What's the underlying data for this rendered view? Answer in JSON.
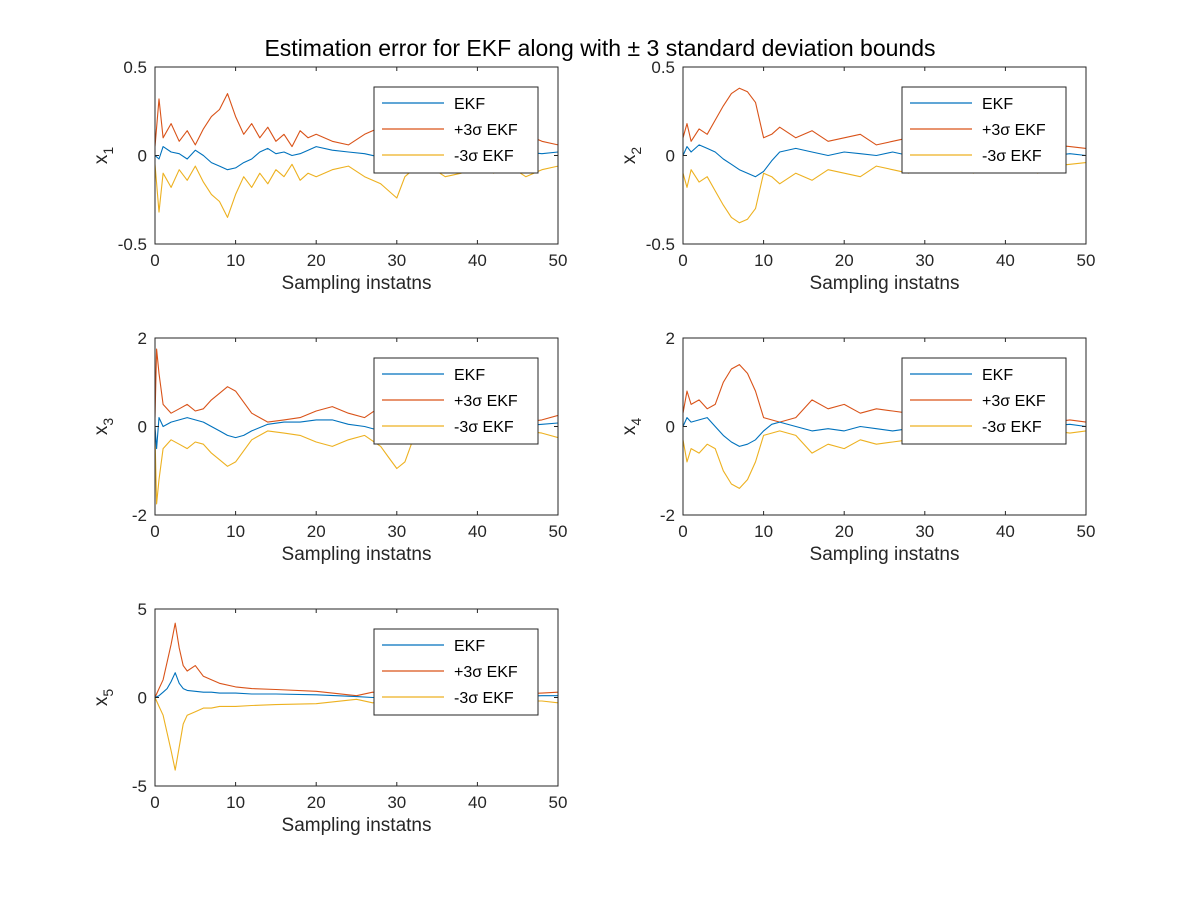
{
  "figure": {
    "title_prefix": "Estimation error for EKF along with ",
    "title_pm": "±",
    "title_suffix": " 3 standard deviation bounds"
  },
  "colors": {
    "EKF": "#0072BD",
    "plus": "#D95319",
    "minus": "#EDB120",
    "axis": "#262626"
  },
  "chart_data": [
    {
      "type": "line",
      "panel": "x1",
      "ylabel_base": "x",
      "ylabel_sub": "1",
      "xlabel": "Sampling instatns",
      "xlim": [
        0,
        50
      ],
      "ylim": [
        -0.5,
        0.5
      ],
      "xticks": [
        "0",
        "10",
        "20",
        "30",
        "40",
        "50"
      ],
      "yticks": [
        "-0.5",
        "0",
        "0.5"
      ],
      "legend": {
        "placement": "top-right",
        "entries": [
          "EKF",
          "+3σ EKF",
          "-3σ EKF"
        ]
      },
      "x": [
        0,
        0.5,
        1,
        2,
        3,
        4,
        5,
        6,
        7,
        8,
        9,
        10,
        11,
        12,
        13,
        14,
        15,
        16,
        17,
        18,
        19,
        20,
        22,
        24,
        26,
        28,
        29,
        30,
        31,
        32,
        34,
        36,
        38,
        40,
        42,
        44,
        46,
        48,
        50
      ],
      "series": [
        {
          "name": "EKF",
          "values": [
            0,
            -0.02,
            0.05,
            0.02,
            0.01,
            -0.02,
            0.03,
            0.0,
            -0.04,
            -0.06,
            -0.08,
            -0.07,
            -0.04,
            -0.02,
            0.02,
            0.04,
            0.01,
            0.02,
            0.0,
            0.01,
            0.03,
            0.05,
            0.03,
            0.02,
            0.01,
            -0.01,
            0.0,
            0.02,
            0.01,
            0.0,
            0.02,
            0.01,
            0.0,
            0.02,
            0.01,
            0.0,
            0.02,
            0.01,
            0.02
          ]
        },
        {
          "name": "+3σ EKF",
          "values": [
            0.05,
            0.32,
            0.1,
            0.18,
            0.08,
            0.14,
            0.06,
            0.15,
            0.22,
            0.26,
            0.35,
            0.22,
            0.12,
            0.18,
            0.1,
            0.16,
            0.08,
            0.12,
            0.05,
            0.14,
            0.1,
            0.12,
            0.08,
            0.06,
            0.12,
            0.16,
            0.2,
            0.22,
            0.12,
            0.08,
            0.06,
            0.12,
            0.1,
            0.05,
            0.1,
            0.06,
            0.12,
            0.08,
            0.06
          ]
        },
        {
          "name": "-3σ EKF",
          "values": [
            -0.05,
            -0.32,
            -0.1,
            -0.18,
            -0.08,
            -0.14,
            -0.06,
            -0.15,
            -0.22,
            -0.26,
            -0.35,
            -0.22,
            -0.12,
            -0.18,
            -0.1,
            -0.16,
            -0.08,
            -0.12,
            -0.05,
            -0.14,
            -0.1,
            -0.12,
            -0.08,
            -0.06,
            -0.12,
            -0.16,
            -0.2,
            -0.24,
            -0.12,
            -0.08,
            -0.06,
            -0.12,
            -0.1,
            -0.05,
            -0.1,
            -0.06,
            -0.12,
            -0.08,
            -0.06
          ]
        }
      ]
    },
    {
      "type": "line",
      "panel": "x2",
      "ylabel_base": "x",
      "ylabel_sub": "2",
      "xlabel": "Sampling instatns",
      "xlim": [
        0,
        50
      ],
      "ylim": [
        -0.5,
        0.5
      ],
      "xticks": [
        "0",
        "10",
        "20",
        "30",
        "40",
        "50"
      ],
      "yticks": [
        "-0.5",
        "0",
        "0.5"
      ],
      "legend": {
        "placement": "top-right",
        "entries": [
          "EKF",
          "+3σ EKF",
          "-3σ EKF"
        ]
      },
      "x": [
        0,
        0.5,
        1,
        2,
        3,
        4,
        5,
        6,
        7,
        8,
        9,
        10,
        11,
        12,
        14,
        16,
        18,
        20,
        22,
        24,
        26,
        28,
        30,
        32,
        34,
        36,
        38,
        40,
        42,
        44,
        46,
        48,
        50
      ],
      "series": [
        {
          "name": "EKF",
          "values": [
            0,
            0.05,
            0.02,
            0.06,
            0.04,
            0.02,
            -0.02,
            -0.05,
            -0.08,
            -0.1,
            -0.12,
            -0.09,
            -0.03,
            0.02,
            0.04,
            0.02,
            0.0,
            0.02,
            0.01,
            0.0,
            0.02,
            0.0,
            0.01,
            0.02,
            0.0,
            0.01,
            0.0,
            0.02,
            0.0,
            0.01,
            0.0,
            0.01,
            0.0
          ]
        },
        {
          "name": "+3σ EKF",
          "values": [
            0.1,
            0.18,
            0.08,
            0.15,
            0.12,
            0.2,
            0.28,
            0.35,
            0.38,
            0.36,
            0.3,
            0.1,
            0.12,
            0.16,
            0.1,
            0.14,
            0.08,
            0.1,
            0.12,
            0.06,
            0.08,
            0.1,
            0.06,
            0.08,
            0.05,
            0.1,
            0.06,
            0.08,
            0.05,
            0.1,
            0.06,
            0.05,
            0.04
          ]
        },
        {
          "name": "-3σ EKF",
          "values": [
            -0.1,
            -0.18,
            -0.08,
            -0.15,
            -0.12,
            -0.2,
            -0.28,
            -0.35,
            -0.38,
            -0.36,
            -0.3,
            -0.1,
            -0.12,
            -0.16,
            -0.1,
            -0.14,
            -0.08,
            -0.1,
            -0.12,
            -0.06,
            -0.08,
            -0.1,
            -0.06,
            -0.08,
            -0.05,
            -0.1,
            -0.06,
            -0.08,
            -0.05,
            -0.1,
            -0.06,
            -0.05,
            -0.04
          ]
        }
      ]
    },
    {
      "type": "line",
      "panel": "x3",
      "ylabel_base": "x",
      "ylabel_sub": "3",
      "xlabel": "Sampling instatns",
      "xlim": [
        0,
        50
      ],
      "ylim": [
        -2,
        2
      ],
      "xticks": [
        "0",
        "10",
        "20",
        "30",
        "40",
        "50"
      ],
      "yticks": [
        "-2",
        "0",
        "2"
      ],
      "legend": {
        "placement": "top-right",
        "entries": [
          "EKF",
          "+3σ EKF",
          "-3σ EKF"
        ]
      },
      "x": [
        0,
        0.2,
        0.5,
        1,
        2,
        3,
        4,
        5,
        6,
        7,
        8,
        9,
        10,
        11,
        12,
        14,
        16,
        18,
        20,
        22,
        24,
        26,
        28,
        29,
        30,
        31,
        32,
        34,
        36,
        38,
        40,
        42,
        44,
        46,
        48,
        50
      ],
      "series": [
        {
          "name": "EKF",
          "values": [
            0,
            -0.5,
            0.2,
            0.0,
            0.1,
            0.15,
            0.2,
            0.15,
            0.1,
            0.0,
            -0.1,
            -0.2,
            -0.25,
            -0.2,
            -0.1,
            0.05,
            0.1,
            0.1,
            0.15,
            0.15,
            0.05,
            0.0,
            -0.1,
            -0.15,
            -0.1,
            -0.05,
            0.0,
            0.05,
            0.0,
            0.02,
            0.0,
            0.05,
            0.0,
            0.02,
            0.05,
            0.08
          ]
        },
        {
          "name": "+3σ EKF",
          "values": [
            0.2,
            1.75,
            1.2,
            0.5,
            0.3,
            0.4,
            0.5,
            0.35,
            0.4,
            0.6,
            0.75,
            0.9,
            0.8,
            0.55,
            0.3,
            0.1,
            0.15,
            0.2,
            0.35,
            0.45,
            0.3,
            0.2,
            0.45,
            0.7,
            0.9,
            0.8,
            0.3,
            0.15,
            0.2,
            0.25,
            0.1,
            0.15,
            0.2,
            0.1,
            0.15,
            0.25
          ]
        },
        {
          "name": "-3σ EKF",
          "values": [
            -0.2,
            -1.75,
            -1.2,
            -0.5,
            -0.3,
            -0.4,
            -0.5,
            -0.35,
            -0.4,
            -0.6,
            -0.75,
            -0.9,
            -0.8,
            -0.55,
            -0.3,
            -0.1,
            -0.15,
            -0.2,
            -0.35,
            -0.45,
            -0.3,
            -0.2,
            -0.45,
            -0.7,
            -0.95,
            -0.8,
            -0.3,
            -0.15,
            -0.2,
            -0.25,
            -0.1,
            -0.15,
            -0.2,
            -0.1,
            -0.15,
            -0.25
          ]
        }
      ]
    },
    {
      "type": "line",
      "panel": "x4",
      "ylabel_base": "x",
      "ylabel_sub": "4",
      "xlabel": "Sampling instatns",
      "xlim": [
        0,
        50
      ],
      "ylim": [
        -2,
        2
      ],
      "xticks": [
        "0",
        "10",
        "20",
        "30",
        "40",
        "50"
      ],
      "yticks": [
        "-2",
        "0",
        "2"
      ],
      "legend": {
        "placement": "top-right",
        "entries": [
          "EKF",
          "+3σ EKF",
          "-3σ EKF"
        ]
      },
      "x": [
        0,
        0.5,
        1,
        2,
        3,
        4,
        5,
        6,
        7,
        8,
        9,
        10,
        11,
        12,
        14,
        16,
        18,
        20,
        22,
        24,
        26,
        28,
        30,
        32,
        34,
        36,
        38,
        40,
        42,
        44,
        46,
        48,
        50
      ],
      "series": [
        {
          "name": "EKF",
          "values": [
            0,
            0.2,
            0.1,
            0.15,
            0.2,
            0.0,
            -0.2,
            -0.35,
            -0.45,
            -0.4,
            -0.3,
            -0.1,
            0.05,
            0.1,
            0.0,
            -0.1,
            -0.05,
            -0.1,
            0.0,
            -0.05,
            -0.1,
            -0.05,
            0.0,
            -0.05,
            0.0,
            0.05,
            0.0,
            0.02,
            0.0,
            0.05,
            0.02,
            0.05,
            0.0
          ]
        },
        {
          "name": "+3σ EKF",
          "values": [
            0.3,
            0.8,
            0.5,
            0.6,
            0.4,
            0.5,
            1.0,
            1.3,
            1.4,
            1.2,
            0.8,
            0.2,
            0.15,
            0.1,
            0.2,
            0.6,
            0.4,
            0.5,
            0.3,
            0.4,
            0.35,
            0.3,
            0.25,
            0.2,
            0.15,
            0.2,
            0.1,
            0.15,
            0.1,
            0.15,
            0.1,
            0.15,
            0.1
          ]
        },
        {
          "name": "-3σ EKF",
          "values": [
            -0.3,
            -0.8,
            -0.5,
            -0.6,
            -0.4,
            -0.5,
            -1.0,
            -1.3,
            -1.4,
            -1.2,
            -0.8,
            -0.2,
            -0.15,
            -0.1,
            -0.2,
            -0.6,
            -0.4,
            -0.5,
            -0.3,
            -0.4,
            -0.35,
            -0.3,
            -0.25,
            -0.2,
            -0.15,
            -0.2,
            -0.1,
            -0.15,
            -0.1,
            -0.15,
            -0.1,
            -0.15,
            -0.1
          ]
        }
      ]
    },
    {
      "type": "line",
      "panel": "x5",
      "ylabel_base": "x",
      "ylabel_sub": "5",
      "xlabel": "Sampling instatns",
      "xlim": [
        0,
        50
      ],
      "ylim": [
        -5,
        5
      ],
      "xticks": [
        "0",
        "10",
        "20",
        "30",
        "40",
        "50"
      ],
      "yticks": [
        "-5",
        "0",
        "5"
      ],
      "legend": {
        "placement": "top-right",
        "entries": [
          "EKF",
          "+3σ EKF",
          "-3σ EKF"
        ]
      },
      "x": [
        0,
        0.5,
        1,
        1.5,
        2,
        2.5,
        3,
        3.5,
        4,
        5,
        6,
        7,
        8,
        10,
        12,
        15,
        20,
        25,
        27,
        30,
        35,
        40,
        45,
        48,
        50
      ],
      "series": [
        {
          "name": "EKF",
          "values": [
            0,
            0.1,
            0.3,
            0.5,
            0.9,
            1.4,
            0.8,
            0.5,
            0.4,
            0.35,
            0.3,
            0.3,
            0.25,
            0.25,
            0.2,
            0.2,
            0.15,
            0.05,
            0.0,
            0.0,
            0.05,
            0.0,
            0.05,
            0.1,
            0.1
          ]
        },
        {
          "name": "+3σ EKF",
          "values": [
            0,
            0.5,
            1.0,
            2.0,
            3.0,
            4.2,
            2.8,
            1.8,
            1.5,
            1.8,
            1.2,
            1.0,
            0.8,
            0.6,
            0.5,
            0.45,
            0.35,
            0.1,
            0.3,
            0.15,
            0.2,
            0.1,
            0.2,
            0.25,
            0.3
          ]
        },
        {
          "name": "-3σ EKF",
          "values": [
            0,
            -0.5,
            -1.0,
            -2.0,
            -3.0,
            -4.1,
            -2.8,
            -1.5,
            -1.0,
            -0.8,
            -0.6,
            -0.6,
            -0.5,
            -0.5,
            -0.45,
            -0.4,
            -0.35,
            -0.1,
            -0.3,
            -0.15,
            -0.2,
            -0.1,
            -0.2,
            -0.2,
            -0.3
          ]
        }
      ]
    }
  ]
}
